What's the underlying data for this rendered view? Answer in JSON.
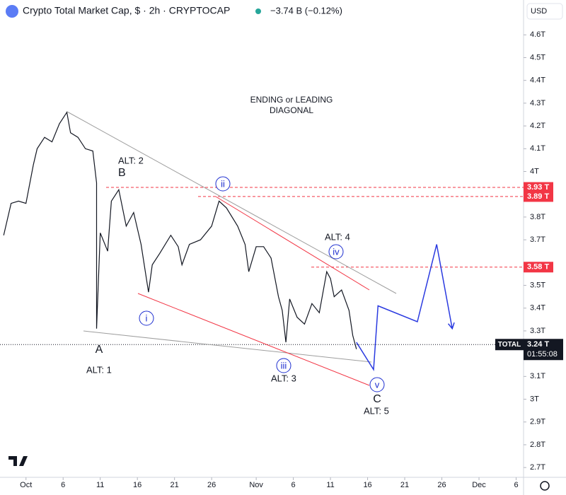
{
  "header": {
    "title": "Crypto Total Market Cap, $ · 2h · CRYPTOCAP",
    "change": "−3.74 B (−0.12%)",
    "currency": "USD"
  },
  "chart_data": {
    "type": "line",
    "xlim": [
      -2.5,
      68
    ],
    "ylim": [
      2.657,
      4.753
    ],
    "xticks": [
      {
        "value": 1,
        "label": "Oct"
      },
      6,
      11,
      16,
      21,
      26,
      {
        "value": 32,
        "label": "Nov"
      },
      {
        "value": 37,
        "label": "6"
      },
      {
        "value": 42,
        "label": "11"
      },
      {
        "value": 47,
        "label": "16"
      },
      {
        "value": 52,
        "label": "21"
      },
      {
        "value": 57,
        "label": "26"
      },
      {
        "value": 62,
        "label": "Dec"
      },
      {
        "value": 67,
        "label": "6"
      }
    ],
    "yticks": [
      {
        "value": 4.6,
        "label": "4.6T"
      },
      {
        "value": 4.5,
        "label": "4.5T"
      },
      {
        "value": 4.4,
        "label": "4.4T"
      },
      {
        "value": 4.3,
        "label": "4.3T"
      },
      {
        "value": 4.2,
        "label": "4.2T"
      },
      {
        "value": 4.1,
        "label": "4.1T"
      },
      {
        "value": 4,
        "label": "4T"
      },
      {
        "value": 3.8,
        "label": "3.8T"
      },
      {
        "value": 3.7,
        "label": "3.7T"
      },
      {
        "value": 3.5,
        "label": "3.5T"
      },
      {
        "value": 3.4,
        "label": "3.4T"
      },
      {
        "value": 3.3,
        "label": "3.3T"
      },
      {
        "value": 3.1,
        "label": "3.1T"
      },
      {
        "value": 3,
        "label": "3T"
      },
      {
        "value": 2.9,
        "label": "2.9T"
      },
      {
        "value": 2.8,
        "label": "2.8T"
      },
      {
        "value": 2.7,
        "label": "2.7T"
      }
    ],
    "series": [
      {
        "color": "#131722",
        "x": [
          -2,
          -1,
          0,
          1,
          2,
          2.5,
          3.5,
          4.5,
          5.5,
          6.5,
          7,
          8,
          9,
          10,
          10.5,
          10.5,
          11,
          12,
          12.5,
          13.5,
          14.5,
          15.5,
          16.5,
          17.5,
          18,
          19,
          20.5,
          21.5,
          22,
          23,
          24.5,
          26,
          27,
          28,
          29.5,
          30.5,
          31,
          32,
          33,
          34,
          35,
          35.5,
          36,
          36.5,
          37.5,
          38.5,
          39.5,
          40.5,
          41.5,
          42,
          42.5,
          43.5,
          44.5,
          45,
          45.5
        ],
        "values": [
          3.72,
          3.86,
          3.87,
          3.86,
          4.03,
          4.1,
          4.15,
          4.13,
          4.21,
          4.26,
          4.17,
          4.15,
          4.1,
          4.09,
          3.95,
          3.31,
          3.73,
          3.65,
          3.87,
          3.92,
          3.76,
          3.82,
          3.68,
          3.47,
          3.59,
          3.64,
          3.72,
          3.67,
          3.59,
          3.68,
          3.7,
          3.76,
          3.87,
          3.84,
          3.76,
          3.68,
          3.56,
          3.67,
          3.67,
          3.62,
          3.45,
          3.39,
          3.25,
          3.44,
          3.36,
          3.33,
          3.42,
          3.38,
          3.56,
          3.53,
          3.45,
          3.48,
          3.39,
          3.28,
          3.22
        ]
      },
      {
        "color": "#2a3ae0",
        "x": [
          45.5,
          47.8,
          48.4,
          53.7,
          56.3,
          58.4
        ],
        "values": [
          3.25,
          3.13,
          3.41,
          3.34,
          3.68,
          3.31
        ]
      }
    ],
    "levels": [
      {
        "value": 3.93,
        "label": "3.93 T"
      },
      {
        "value": 3.89,
        "label": "3.89 T"
      },
      {
        "value": 3.58,
        "label": "3.58 T"
      }
    ],
    "last": {
      "value": 3.24,
      "label": "3.24 T"
    },
    "symbol": "TOTAL",
    "countdown": "01:55:08",
    "annotations": [
      "ENDING or LEADING",
      "DIAGONAL",
      "ALT: 2",
      "B",
      "ii",
      "ALT: 4",
      "iv",
      "i",
      "A",
      "ALT: 1",
      "iii",
      "ALT: 3",
      "v",
      "C",
      "ALT: 5"
    ]
  }
}
